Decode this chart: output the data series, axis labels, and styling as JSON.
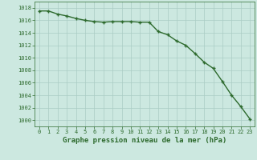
{
  "hours": [
    0,
    1,
    2,
    3,
    4,
    5,
    6,
    7,
    8,
    9,
    10,
    11,
    12,
    13,
    14,
    15,
    16,
    17,
    18,
    19,
    20,
    21,
    22,
    23
  ],
  "pressure": [
    1017.5,
    1017.5,
    1017.0,
    1016.7,
    1016.3,
    1016.0,
    1015.8,
    1015.7,
    1015.8,
    1015.8,
    1015.8,
    1015.7,
    1015.7,
    1014.2,
    1013.7,
    1012.7,
    1012.0,
    1010.7,
    1009.3,
    1008.3,
    1006.2,
    1004.0,
    1002.2,
    1000.2
  ],
  "line_color": "#2d6a2d",
  "marker": "+",
  "bg_color": "#cce8e0",
  "grid_color": "#aaccc4",
  "xlabel": "Graphe pression niveau de la mer (hPa)",
  "ylim": [
    999,
    1019
  ],
  "yticks": [
    1000,
    1002,
    1004,
    1006,
    1008,
    1010,
    1012,
    1014,
    1016,
    1018
  ],
  "xlim": [
    -0.5,
    23.5
  ],
  "xticks": [
    0,
    1,
    2,
    3,
    4,
    5,
    6,
    7,
    8,
    9,
    10,
    11,
    12,
    13,
    14,
    15,
    16,
    17,
    18,
    19,
    20,
    21,
    22,
    23
  ],
  "tick_fontsize": 5.0,
  "xlabel_fontsize": 6.5,
  "line_width": 1.0,
  "marker_size": 3.5,
  "marker_ew": 1.0
}
